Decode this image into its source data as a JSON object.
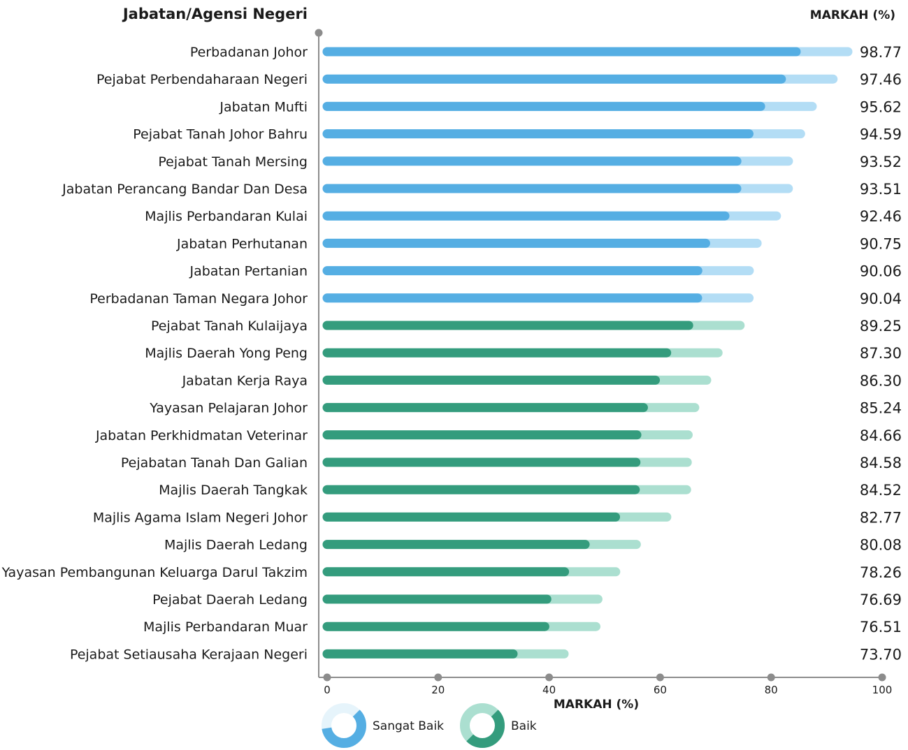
{
  "chart_data": {
    "type": "bar",
    "orientation": "horizontal",
    "title": "",
    "ylabel_header": "Jabatan/Agensi Negeri",
    "value_header": "MARKAH (%)",
    "xlabel": "MARKAH (%)",
    "xlim": [
      0,
      100
    ],
    "x_ticks": [
      0,
      20,
      40,
      60,
      80,
      100
    ],
    "x_tick_labels": [
      "0",
      "20",
      "40",
      "60",
      "80",
      "100"
    ],
    "legend": {
      "placement": "bottom",
      "items": [
        {
          "key": "sangat-baik",
          "label": "Sangat Baik",
          "color": "#55aee3",
          "light_color": "#e6f4fb"
        },
        {
          "key": "baik",
          "label": "Baik",
          "color": "#349c7d",
          "light_color": "#abdfd0"
        }
      ]
    },
    "colors": {
      "sangat_baik_bar": "#55aee3",
      "sangat_baik_track": "#b3ddf5",
      "baik_bar": "#349c7d",
      "baik_track": "#abdfd0",
      "axis": "#8c8c8c"
    },
    "categories": [
      "Perbadanan Johor",
      "Pejabat Perbendaharaan Negeri",
      "Jabatan Mufti",
      "Pejabat Tanah Johor Bahru",
      "Pejabat Tanah Mersing",
      "Jabatan Perancang Bandar Dan Desa",
      "Majlis Perbandaran Kulai",
      "Jabatan Perhutanan",
      "Jabatan Pertanian",
      "Perbadanan Taman Negara Johor",
      "Pejabat Tanah Kulaijaya",
      "Majlis Daerah Yong Peng",
      "Jabatan Kerja Raya",
      "Yayasan Pelajaran Johor",
      "Jabatan Perkhidmatan Veterinar",
      "Pejabatan Tanah Dan Galian",
      "Majlis Daerah Tangkak",
      "Majlis Agama Islam Negeri Johor",
      "Majlis Daerah Ledang",
      "Yayasan Pembangunan Keluarga Darul Takzim",
      "Pejabat Daerah Ledang",
      "Majlis Perbandaran Muar",
      "Pejabat Setiausaha Kerajaan Negeri"
    ],
    "value_labels": [
      "98.77",
      "97.46",
      "95.62",
      "94.59",
      "93.52",
      "93.51",
      "92.46",
      "90.75",
      "90.06",
      "90.04",
      "89.25",
      "87.30",
      "86.30",
      "85.24",
      "84.66",
      "84.58",
      "84.52",
      "82.77",
      "80.08",
      "78.26",
      "76.69",
      "76.51",
      "73.70"
    ],
    "series": [
      {
        "name": "MARKAH (%)",
        "values": [
          98.77,
          97.46,
          95.62,
          94.59,
          93.52,
          93.51,
          92.46,
          90.75,
          90.06,
          90.04,
          89.25,
          87.3,
          86.3,
          85.24,
          84.66,
          84.58,
          84.52,
          82.77,
          80.08,
          78.26,
          76.69,
          76.51,
          73.7
        ],
        "ratings": [
          "Sangat Baik",
          "Sangat Baik",
          "Sangat Baik",
          "Sangat Baik",
          "Sangat Baik",
          "Sangat Baik",
          "Sangat Baik",
          "Sangat Baik",
          "Sangat Baik",
          "Sangat Baik",
          "Baik",
          "Baik",
          "Baik",
          "Baik",
          "Baik",
          "Baik",
          "Baik",
          "Baik",
          "Baik",
          "Baik",
          "Baik",
          "Baik",
          "Baik"
        ]
      }
    ]
  }
}
